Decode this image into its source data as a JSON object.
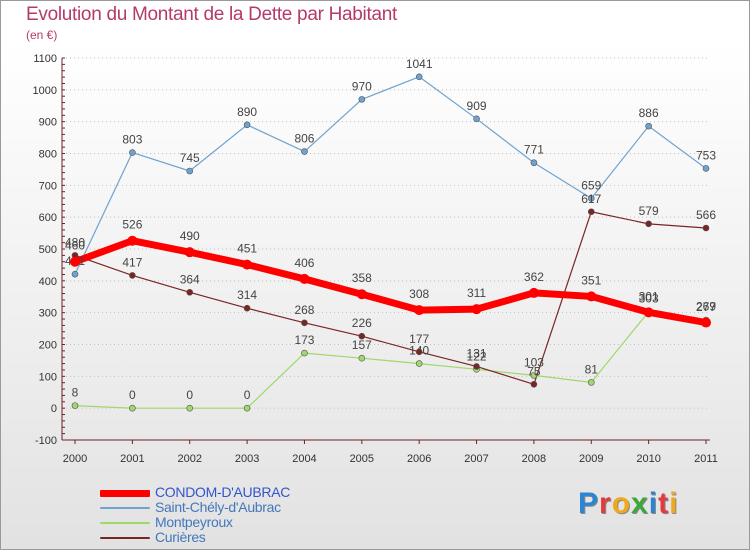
{
  "header": {
    "title": "Evolution du Montant de la Dette par Habitant",
    "unit": "(en €)"
  },
  "logo": {
    "letters": [
      {
        "char": "P",
        "color": "#2a86d1"
      },
      {
        "char": "r",
        "color": "#e03c3c"
      },
      {
        "char": "o",
        "color": "#f0a81e"
      },
      {
        "char": "x",
        "color": "#3aa83a"
      },
      {
        "char": "i",
        "color": "#2a86d1"
      },
      {
        "char": "t",
        "color": "#e03c3c"
      },
      {
        "char": "i",
        "color": "#f0a81e"
      }
    ]
  },
  "colors": {
    "axis": "#6e1f2a",
    "grid": "#c0c0c0",
    "tick_text": "#333333",
    "value_text": "#444444"
  },
  "chart_data": {
    "type": "line",
    "title": "Evolution du Montant de la Dette par Habitant",
    "subtitle": "(en €)",
    "x": [
      "2000",
      "2001",
      "2002",
      "2003",
      "2004",
      "2005",
      "2006",
      "2007",
      "2008",
      "2009",
      "2010",
      "2011"
    ],
    "ylim": [
      -100,
      1100
    ],
    "yticks": [
      -100,
      0,
      100,
      200,
      300,
      400,
      500,
      600,
      700,
      800,
      900,
      1000,
      1100
    ],
    "grid": "horizontal dotted",
    "legend_position": "bottom-left",
    "series": [
      {
        "name": "Saint-Chély-d'Aubrac",
        "color": "#6fa3cf",
        "width": 1.2,
        "values": [
          421,
          803,
          745,
          890,
          806,
          970,
          1041,
          909,
          771,
          659,
          886,
          753
        ]
      },
      {
        "name": "Montpeyroux",
        "color": "#9fd86b",
        "width": 1.2,
        "values": [
          8,
          0,
          0,
          0,
          173,
          157,
          140,
          122,
          103,
          81,
          303,
          277
        ]
      },
      {
        "name": "Curières",
        "color": "#7a2525",
        "width": 1.2,
        "values": [
          480,
          417,
          364,
          314,
          268,
          226,
          177,
          131,
          75,
          617,
          579,
          566
        ]
      },
      {
        "name": "CONDOM-D'AUBRAC",
        "color": "#ff0000",
        "width": 7,
        "values": [
          460,
          526,
          490,
          451,
          406,
          358,
          308,
          311,
          362,
          351,
          301,
          269
        ]
      }
    ],
    "legend_order": [
      "CONDOM-D'AUBRAC",
      "Saint-Chély-d'Aubrac",
      "Montpeyroux",
      "Curières"
    ]
  }
}
